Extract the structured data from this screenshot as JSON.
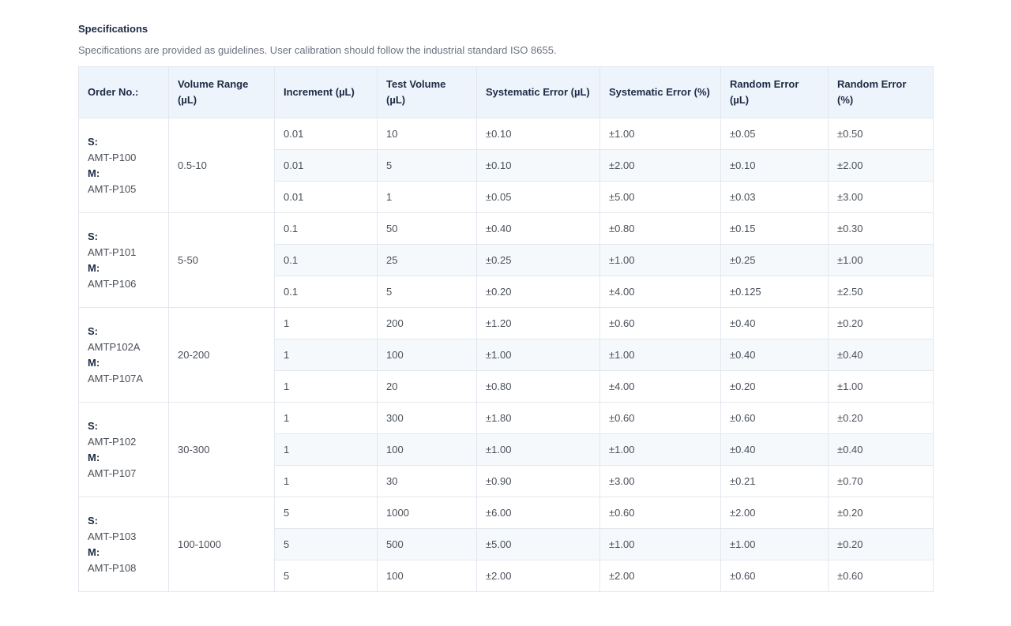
{
  "section": {
    "title": "Specifications",
    "subtitle": "Specifications are provided as guidelines. User calibration should follow the industrial standard ISO 8655."
  },
  "table": {
    "headers": [
      "Order No.:",
      "Volume Range (µL)",
      "Increment (µL)",
      "Test Volume (µL)",
      "Systematic Error (µL)",
      "Systematic Error (%)",
      "Random Error (µL)",
      "Random Error (%)"
    ],
    "groups": [
      {
        "s_label": "S:",
        "s_code": "AMT-P100",
        "m_label": "M:",
        "m_code": "AMT-P105",
        "range": "0.5-10",
        "rows": [
          [
            "0.01",
            "10",
            "±0.10",
            "±1.00",
            "±0.05",
            "±0.50"
          ],
          [
            "0.01",
            "5",
            "±0.10",
            "±2.00",
            "±0.10",
            "±2.00"
          ],
          [
            "0.01",
            "1",
            "±0.05",
            "±5.00",
            "±0.03",
            "±3.00"
          ]
        ]
      },
      {
        "s_label": "S:",
        "s_code": "AMT-P101",
        "m_label": "M:",
        "m_code": "AMT-P106",
        "range": "5-50",
        "rows": [
          [
            "0.1",
            "50",
            "±0.40",
            "±0.80",
            "±0.15",
            "±0.30"
          ],
          [
            "0.1",
            "25",
            "±0.25",
            "±1.00",
            "±0.25",
            "±1.00"
          ],
          [
            "0.1",
            "5",
            "±0.20",
            "±4.00",
            "±0.125",
            "±2.50"
          ]
        ]
      },
      {
        "s_label": "S:",
        "s_code": "AMTP102A",
        "m_label": "M:",
        "m_code": "AMT-P107A",
        "range": "20-200",
        "rows": [
          [
            "1",
            "200",
            "±1.20",
            "±0.60",
            "±0.40",
            "±0.20"
          ],
          [
            "1",
            "100",
            "±1.00",
            "±1.00",
            "±0.40",
            "±0.40"
          ],
          [
            "1",
            "20",
            "±0.80",
            "±4.00",
            "±0.20",
            "±1.00"
          ]
        ]
      },
      {
        "s_label": "S:",
        "s_code": "AMT-P102",
        "m_label": "M:",
        "m_code": "AMT-P107",
        "range": "30-300",
        "rows": [
          [
            "1",
            "300",
            "±1.80",
            "±0.60",
            "±0.60",
            "±0.20"
          ],
          [
            "1",
            "100",
            "±1.00",
            "±1.00",
            "±0.40",
            "±0.40"
          ],
          [
            "1",
            "30",
            "±0.90",
            "±3.00",
            "±0.21",
            "±0.70"
          ]
        ]
      },
      {
        "s_label": "S:",
        "s_code": "AMT-P103",
        "m_label": "M:",
        "m_code": "AMT-P108",
        "range": "100-1000",
        "rows": [
          [
            "5",
            "1000",
            "±6.00",
            "±0.60",
            "±2.00",
            "±0.20"
          ],
          [
            "5",
            "500",
            "±5.00",
            "±1.00",
            "±1.00",
            "±0.20"
          ],
          [
            "5",
            "100",
            "±2.00",
            "±2.00",
            "±0.60",
            "±0.60"
          ]
        ]
      }
    ]
  }
}
